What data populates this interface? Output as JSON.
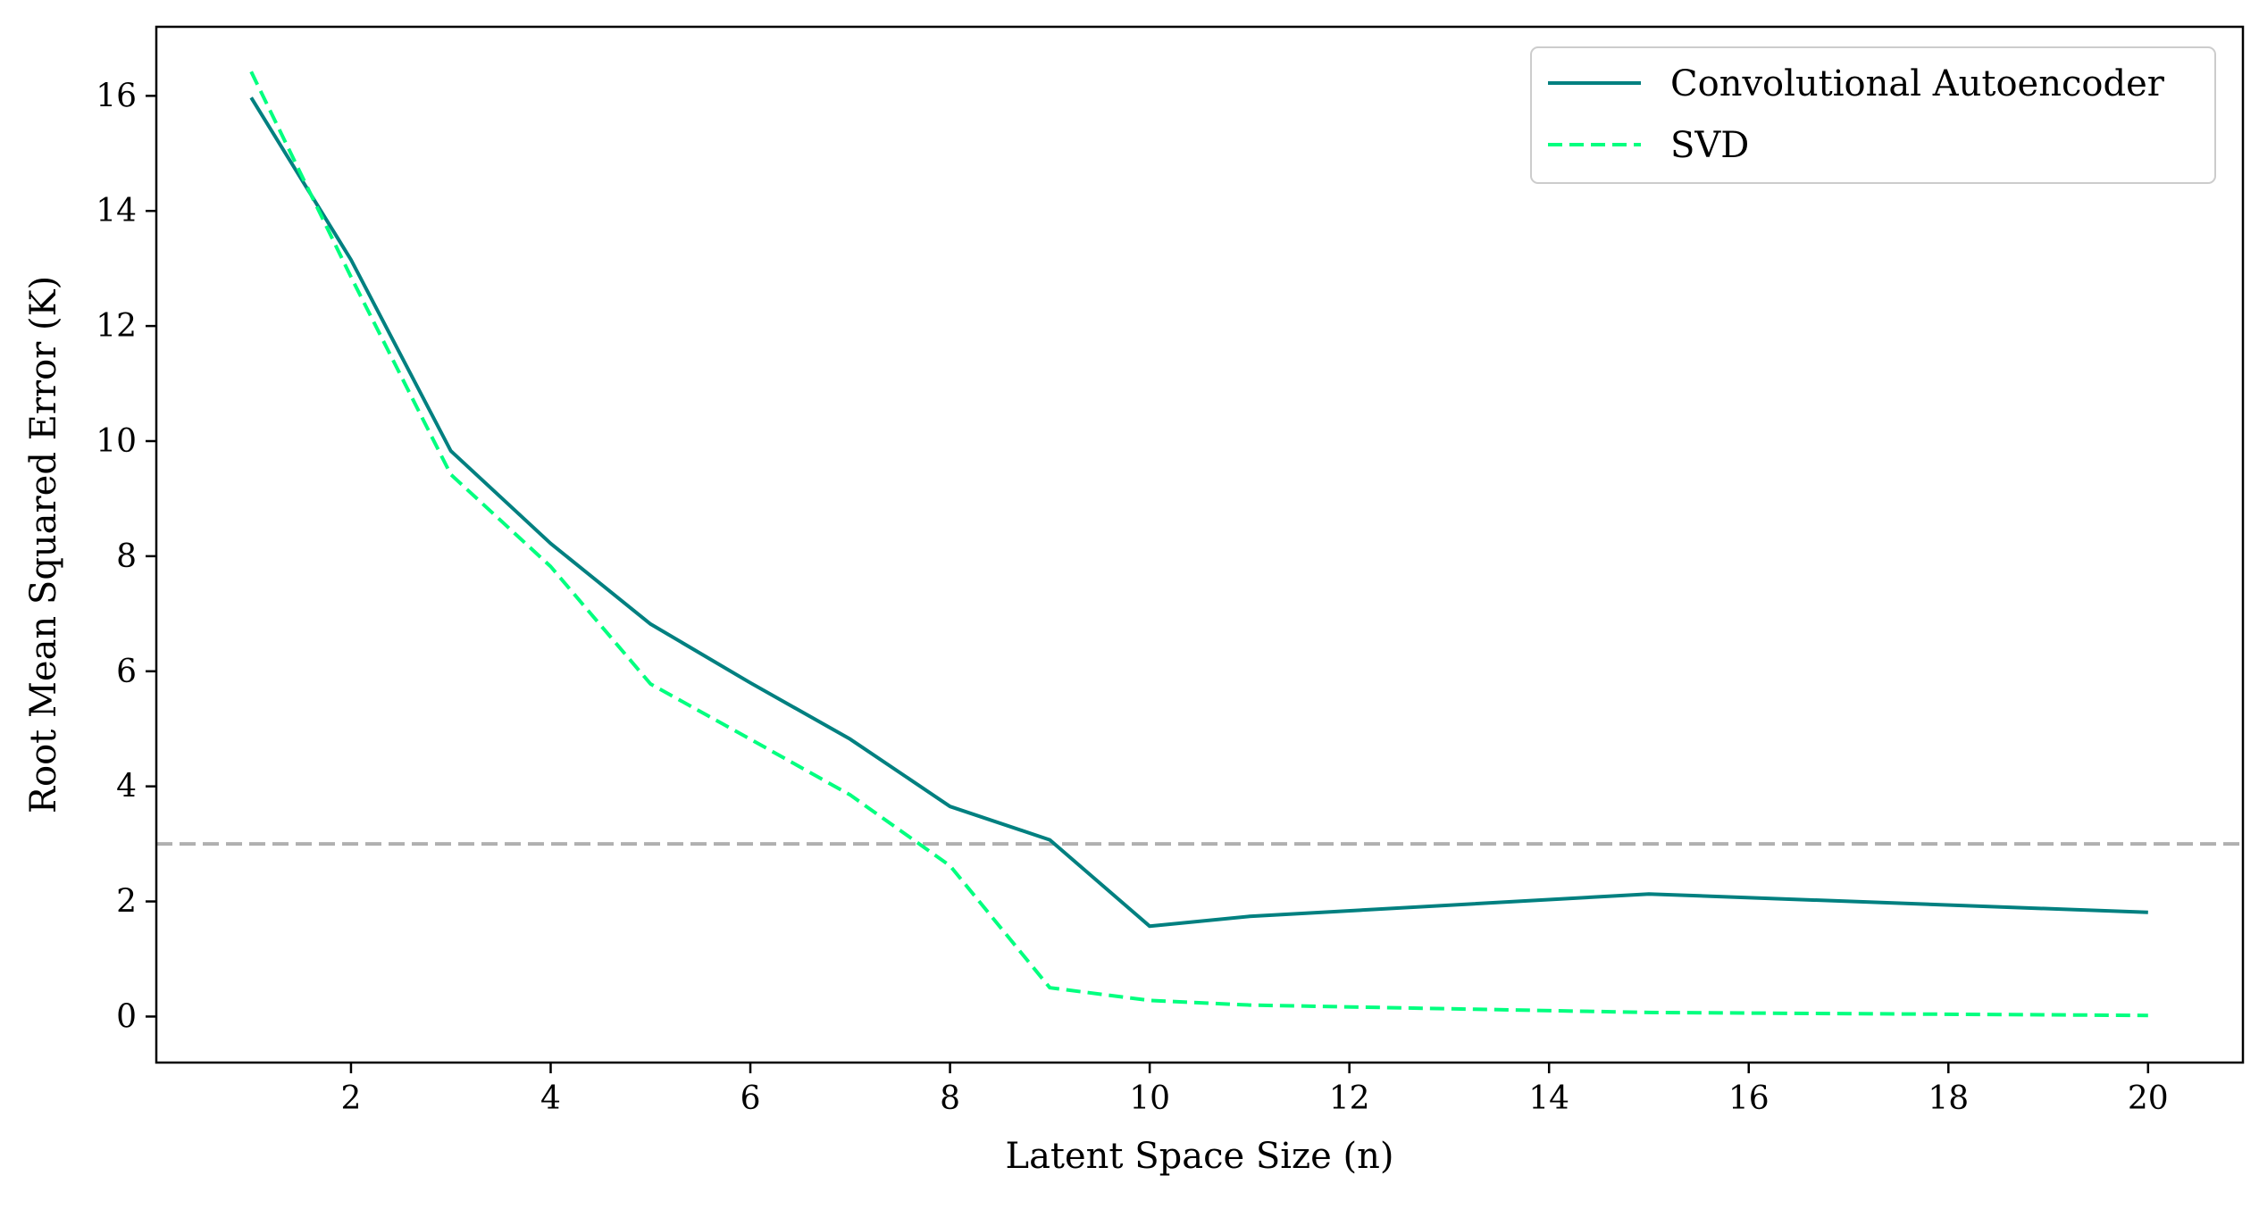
{
  "chart_data": {
    "type": "line",
    "title": "",
    "xlabel": "Latent Space Size (n)",
    "ylabel": "Root Mean Squared Error (K)",
    "xlim": [
      0.05,
      20.95
    ],
    "ylim": [
      -0.8,
      17.2
    ],
    "xticks": [
      2,
      4,
      6,
      8,
      10,
      12,
      14,
      16,
      18,
      20
    ],
    "yticks": [
      0,
      2,
      4,
      6,
      8,
      10,
      12,
      14,
      16
    ],
    "grid": false,
    "legend_position": "top-right",
    "reference_line": {
      "y": 3.0,
      "color": "#b0b0b0",
      "style": "dashed"
    },
    "series": [
      {
        "name": "Convolutional Autoencoder",
        "color": "#008080",
        "style": "solid",
        "x": [
          1,
          2,
          3,
          4,
          5,
          6,
          7,
          8,
          9,
          10,
          11,
          15,
          20
        ],
        "y": [
          15.97,
          13.15,
          9.83,
          8.22,
          6.82,
          5.8,
          4.82,
          3.65,
          3.07,
          1.57,
          1.74,
          2.13,
          1.81
        ]
      },
      {
        "name": "SVD",
        "color": "#00ff7f",
        "style": "dashed",
        "x": [
          1,
          2,
          3,
          4,
          5,
          6,
          7,
          8,
          9,
          10,
          11,
          15,
          20
        ],
        "y": [
          16.42,
          12.85,
          9.42,
          7.82,
          5.78,
          4.82,
          3.85,
          2.62,
          0.5,
          0.28,
          0.2,
          0.07,
          0.02
        ]
      }
    ]
  }
}
